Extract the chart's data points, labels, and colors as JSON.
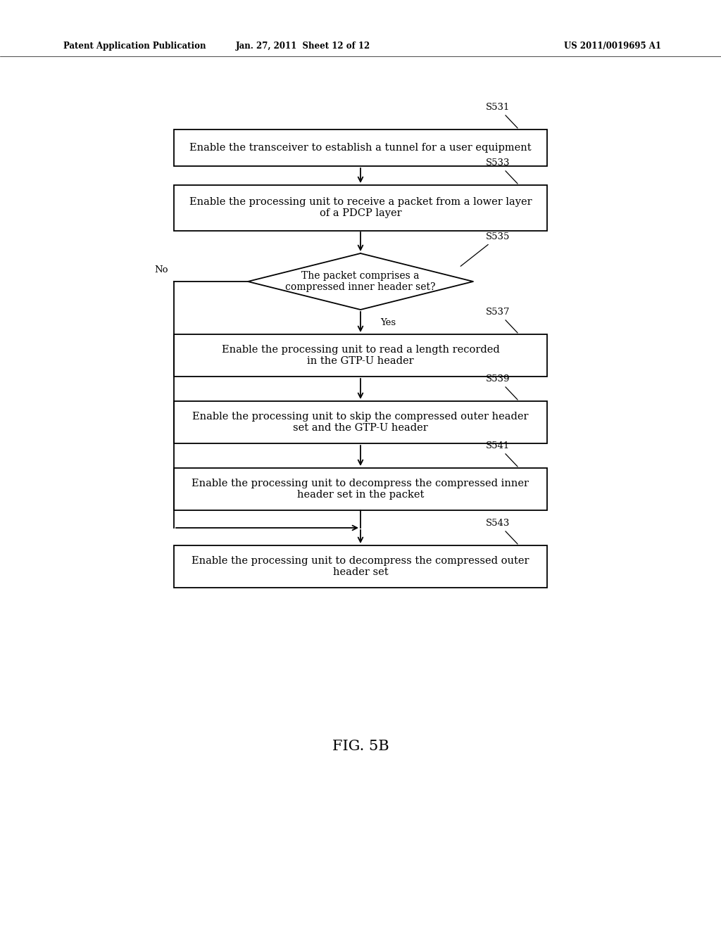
{
  "title": "FIG. 5B",
  "header_left": "Patent Application Publication",
  "header_center": "Jan. 27, 2011  Sheet 12 of 12",
  "header_right": "US 2011/0019695 A1",
  "background": "#ffffff",
  "box_s531_text": "Enable the transceiver to establish a tunnel for a user equipment",
  "box_s533_text": "Enable the processing unit to receive a packet from a lower layer\nof a PDCP layer",
  "diamond_s535_text": "The packet comprises a\ncompressed inner header set?",
  "box_s537_text": "Enable the processing unit to read a length recorded\nin the GTP-U header",
  "box_s539_text": "Enable the processing unit to skip the compressed outer header\nset and the GTP-U header",
  "box_s541_text": "Enable the processing unit to decompress the compressed inner\nheader set in the packet",
  "box_s543_text": "Enable the processing unit to decompress the compressed outer\nheader set",
  "label_s531": "S531",
  "label_s533": "S533",
  "label_s535": "S535",
  "label_s537": "S537",
  "label_s539": "S539",
  "label_s541": "S541",
  "label_s543": "S543",
  "yes_label": "Yes",
  "no_label": "No"
}
